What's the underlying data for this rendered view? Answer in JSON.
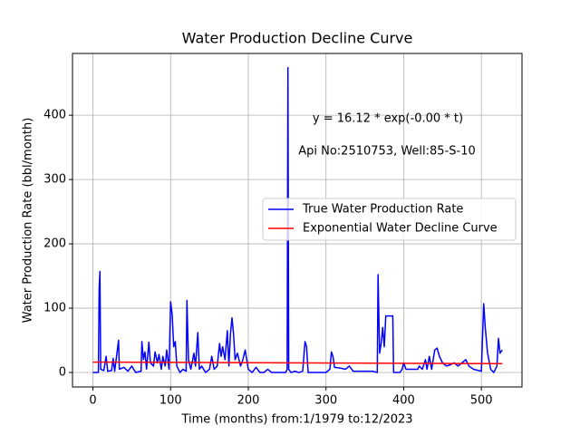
{
  "chart_data": {
    "type": "line",
    "title": "Water Production Decline Curve",
    "xlabel": "Time (months) from:1/1979 to:12/2023",
    "ylabel": "Water Production Rate (bbl/month)",
    "annotations": [
      "y = 16.12 * exp(-0.00 * t)",
      "Api No:2510753, Well:85-S-10"
    ],
    "xlim": [
      -26.3,
      552.3
    ],
    "ylim": [
      -22.5,
      496
    ],
    "xticks": [
      0,
      100,
      200,
      300,
      400,
      500
    ],
    "yticks": [
      0,
      100,
      200,
      300,
      400
    ],
    "grid": true,
    "legend": "center right",
    "series": [
      {
        "name": "True Water Production Rate",
        "color": "#0000ff",
        "x": [
          0,
          7,
          8,
          9,
          10,
          14,
          17,
          19,
          24,
          26,
          28,
          33,
          34,
          40,
          45,
          50,
          55,
          62,
          63,
          65,
          67,
          69,
          72,
          74,
          78,
          80,
          83,
          85,
          88,
          90,
          93,
          95,
          98,
          100,
          102,
          104,
          106,
          108,
          112,
          116,
          120,
          121,
          123,
          126,
          130,
          132,
          135,
          137,
          140,
          145,
          150,
          153,
          156,
          160,
          163,
          165,
          167,
          170,
          173,
          175,
          177,
          179,
          181,
          183,
          186,
          190,
          193,
          196,
          198,
          200,
          205,
          210,
          215,
          220,
          225,
          230,
          240,
          248,
          250,
          251,
          252,
          255,
          260,
          265,
          270,
          273,
          275,
          277,
          290,
          300,
          305,
          307,
          309,
          311,
          318,
          325,
          330,
          335,
          340,
          350,
          360,
          366,
          367,
          369,
          371,
          373,
          375,
          377,
          386,
          387,
          395,
          398,
          400,
          403,
          410,
          418,
          420,
          424,
          428,
          430,
          433,
          436,
          440,
          443,
          446,
          450,
          455,
          460,
          465,
          470,
          475,
          480,
          484,
          490,
          500,
          503,
          505,
          508,
          512,
          516,
          520,
          522,
          524,
          527
        ],
        "values": [
          0,
          0,
          130,
          157,
          5,
          3,
          25,
          2,
          3,
          22,
          2,
          50,
          5,
          8,
          2,
          10,
          0,
          2,
          48,
          20,
          32,
          5,
          47,
          15,
          10,
          32,
          15,
          28,
          5,
          25,
          10,
          35,
          5,
          110,
          90,
          40,
          48,
          10,
          0,
          5,
          2,
          112,
          20,
          5,
          30,
          10,
          62,
          5,
          10,
          0,
          5,
          25,
          5,
          10,
          45,
          25,
          40,
          20,
          65,
          10,
          60,
          85,
          60,
          20,
          30,
          10,
          20,
          35,
          20,
          5,
          0,
          8,
          0,
          0,
          5,
          0,
          0,
          0,
          5,
          474,
          5,
          0,
          2,
          0,
          2,
          48,
          40,
          0,
          0,
          0,
          5,
          32,
          25,
          8,
          7,
          5,
          10,
          2,
          2,
          2,
          2,
          0,
          152,
          30,
          45,
          70,
          40,
          88,
          88,
          0,
          0,
          5,
          15,
          5,
          5,
          5,
          10,
          5,
          20,
          5,
          25,
          5,
          35,
          38,
          25,
          15,
          10,
          12,
          15,
          10,
          15,
          20,
          10,
          5,
          2,
          107,
          70,
          30,
          5,
          0,
          10,
          53,
          30,
          35
        ]
      },
      {
        "name": "Exponential Water Decline Curve",
        "color": "#ff0000",
        "x": [
          0,
          527
        ],
        "values": [
          16.12,
          13.8
        ]
      }
    ]
  }
}
